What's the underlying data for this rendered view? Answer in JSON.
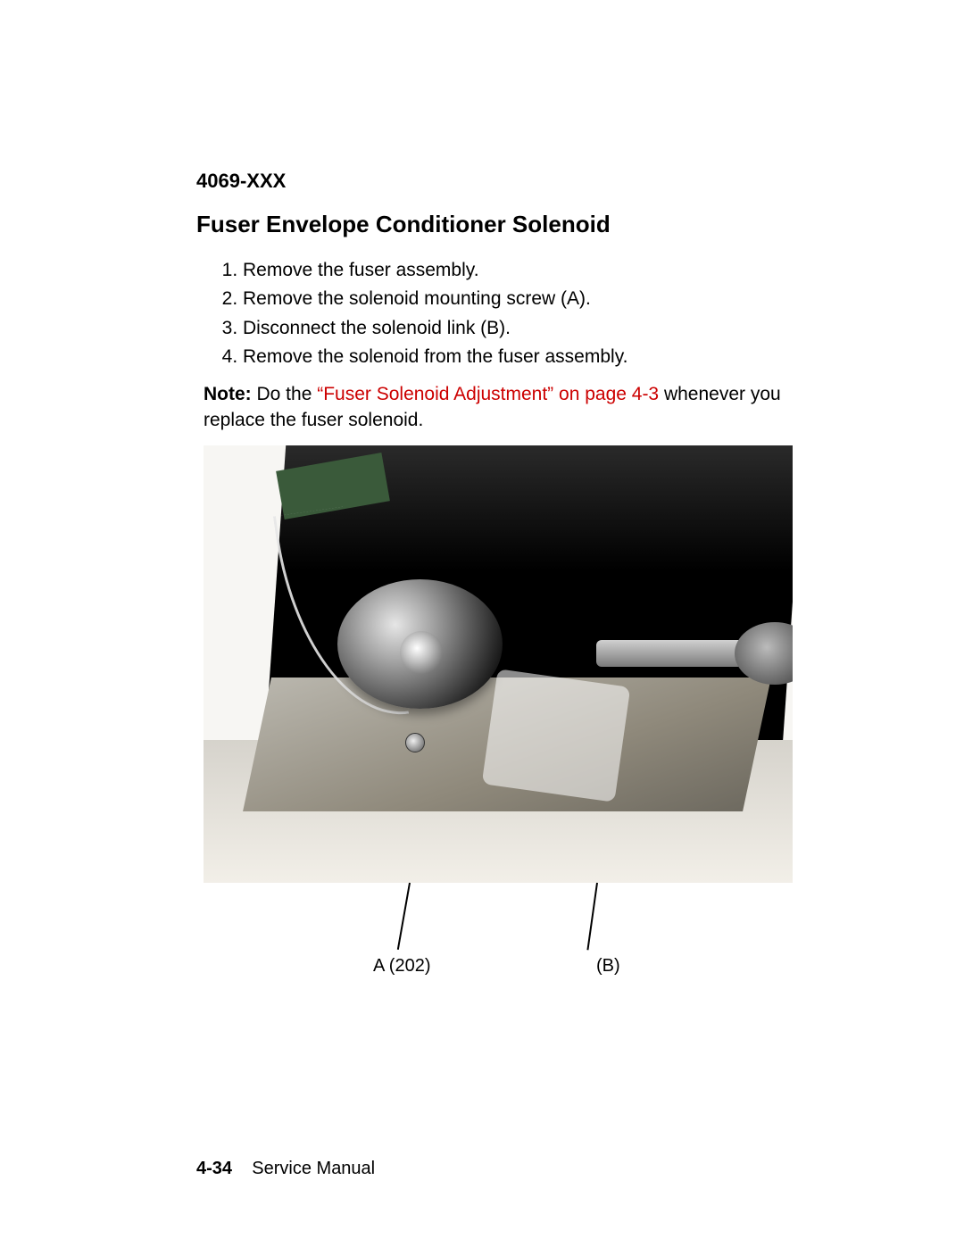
{
  "header": {
    "model": "4069-XXX"
  },
  "section": {
    "title": "Fuser Envelope Conditioner Solenoid"
  },
  "steps": [
    "Remove the fuser assembly.",
    "Remove the solenoid mounting screw (A).",
    "Disconnect the solenoid link (B).",
    "Remove the solenoid from the fuser assembly."
  ],
  "note": {
    "label": "Note:",
    "prefix": "  Do the ",
    "link": "“Fuser Solenoid Adjustment” on page 4-3",
    "suffix": " whenever you replace the fuser solenoid."
  },
  "figure": {
    "labels": {
      "a": "A (202)",
      "b": "(B)"
    },
    "colors": {
      "page_bg": "#ffffff",
      "photo_bg": "#f7f6f3",
      "chassis": "#000000",
      "tray_light": "#b9b6ad",
      "tray_dark": "#6e6a60",
      "metal_highlight": "#e6e6e6",
      "metal_shadow": "#1a1a1a",
      "link_red": "#cc0000",
      "text": "#000000"
    }
  },
  "footer": {
    "page": "4-34",
    "title": "Service Manual"
  }
}
